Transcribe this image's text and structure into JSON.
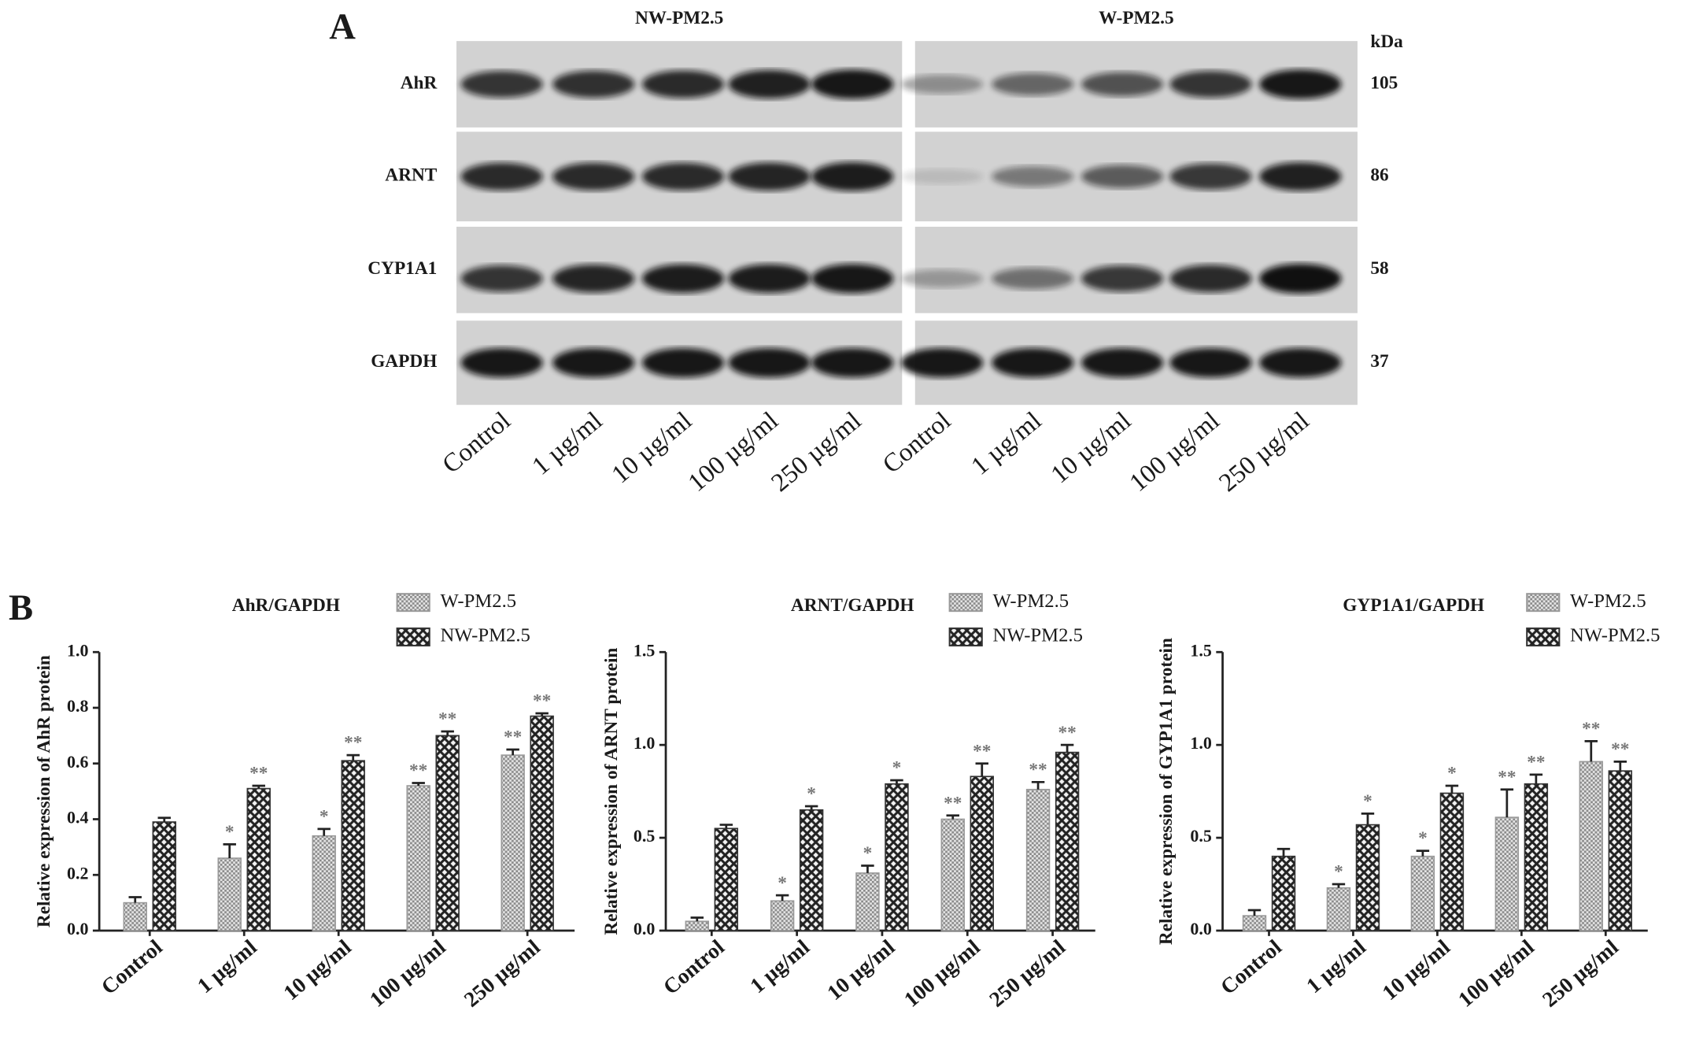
{
  "blot": {
    "panel_label": "A",
    "groups": [
      "NW-PM2.5",
      "W-PM2.5"
    ],
    "unit": "kDa",
    "proteins": [
      {
        "name": "AhR",
        "kda": "105"
      },
      {
        "name": "ARNT",
        "kda": "86"
      },
      {
        "name": "CYP1A1",
        "kda": "58"
      },
      {
        "name": "GAPDH",
        "kda": "37"
      }
    ],
    "lanes": [
      "Control",
      "1  µg/ml",
      "10 µg/ml",
      "100 µg/ml",
      "250 µg/ml"
    ]
  },
  "panel_b_label": "B",
  "chart_data": [
    {
      "type": "bar",
      "title": "AhR/GAPDH",
      "y_label": "Relative expression of AhR protein",
      "categories": [
        "Control",
        "1  µg/ml",
        "10 µg/ml",
        "100 µg/ml",
        "250 µg/ml"
      ],
      "series": [
        {
          "name": "W-PM2.5",
          "color": "#9a9a9a",
          "hatch": "fine",
          "values": [
            0.1,
            0.26,
            0.34,
            0.52,
            0.63
          ],
          "errors": [
            0.02,
            0.05,
            0.025,
            0.01,
            0.02
          ],
          "annotations": [
            null,
            "*",
            "*",
            "**",
            "**"
          ]
        },
        {
          "name": "NW-PM2.5",
          "color": "#333333",
          "hatch": "cross",
          "values": [
            0.39,
            0.51,
            0.61,
            0.7,
            0.77
          ],
          "errors": [
            0.015,
            0.01,
            0.02,
            0.015,
            0.01
          ],
          "annotations": [
            null,
            "**",
            "**",
            "**",
            "**"
          ]
        }
      ],
      "ylim": [
        0,
        1.0
      ],
      "yticks": [
        {
          "value": 0,
          "label": "0.0"
        },
        0.2,
        0.4,
        0.6,
        0.8,
        {
          "value": 1.0,
          "label": "1.0"
        }
      ]
    },
    {
      "type": "bar",
      "title": "ARNT/GAPDH",
      "y_label": "Relative expression of ARNT protein",
      "categories": [
        "Control",
        "1  µg/ml",
        "10 µg/ml",
        "100 µg/ml",
        "250 µg/ml"
      ],
      "series": [
        {
          "name": "W-PM2.5",
          "color": "#9a9a9a",
          "hatch": "fine",
          "values": [
            0.05,
            0.16,
            0.31,
            0.6,
            0.76
          ],
          "errors": [
            0.02,
            0.03,
            0.04,
            0.02,
            0.04
          ],
          "annotations": [
            null,
            "*",
            "*",
            "**",
            "**"
          ]
        },
        {
          "name": "NW-PM2.5",
          "color": "#333333",
          "hatch": "cross",
          "values": [
            0.55,
            0.65,
            0.79,
            0.83,
            0.96
          ],
          "errors": [
            0.02,
            0.02,
            0.02,
            0.07,
            0.04
          ],
          "annotations": [
            null,
            "*",
            "*",
            "**",
            "**"
          ]
        }
      ],
      "ylim": [
        0,
        1.5
      ],
      "yticks": [
        {
          "value": 0,
          "label": "0.0"
        },
        0.5,
        {
          "value": 1.0,
          "label": "1.0"
        },
        1.5
      ]
    },
    {
      "type": "bar",
      "title": "GYP1A1/GAPDH",
      "y_label": "Relative expression of GYP1A1 protein",
      "categories": [
        "Control",
        "1  µg/ml",
        "10 µg/ml",
        "100 µg/ml",
        "250 µg/ml"
      ],
      "series": [
        {
          "name": "W-PM2.5",
          "color": "#9a9a9a",
          "hatch": "fine",
          "values": [
            0.08,
            0.23,
            0.4,
            0.61,
            0.91
          ],
          "errors": [
            0.03,
            0.02,
            0.03,
            0.15,
            0.11
          ],
          "annotations": [
            null,
            "*",
            "*",
            "**",
            "**"
          ]
        },
        {
          "name": "NW-PM2.5",
          "color": "#333333",
          "hatch": "cross",
          "values": [
            0.4,
            0.57,
            0.74,
            0.79,
            0.86
          ],
          "errors": [
            0.04,
            0.06,
            0.04,
            0.05,
            0.05
          ],
          "annotations": [
            null,
            "*",
            "*",
            "**",
            "**"
          ]
        }
      ],
      "ylim": [
        0,
        1.5
      ],
      "yticks": [
        {
          "value": 0,
          "label": "0.0"
        },
        0.5,
        {
          "value": 1.0,
          "label": "1.0"
        },
        1.5
      ]
    }
  ]
}
